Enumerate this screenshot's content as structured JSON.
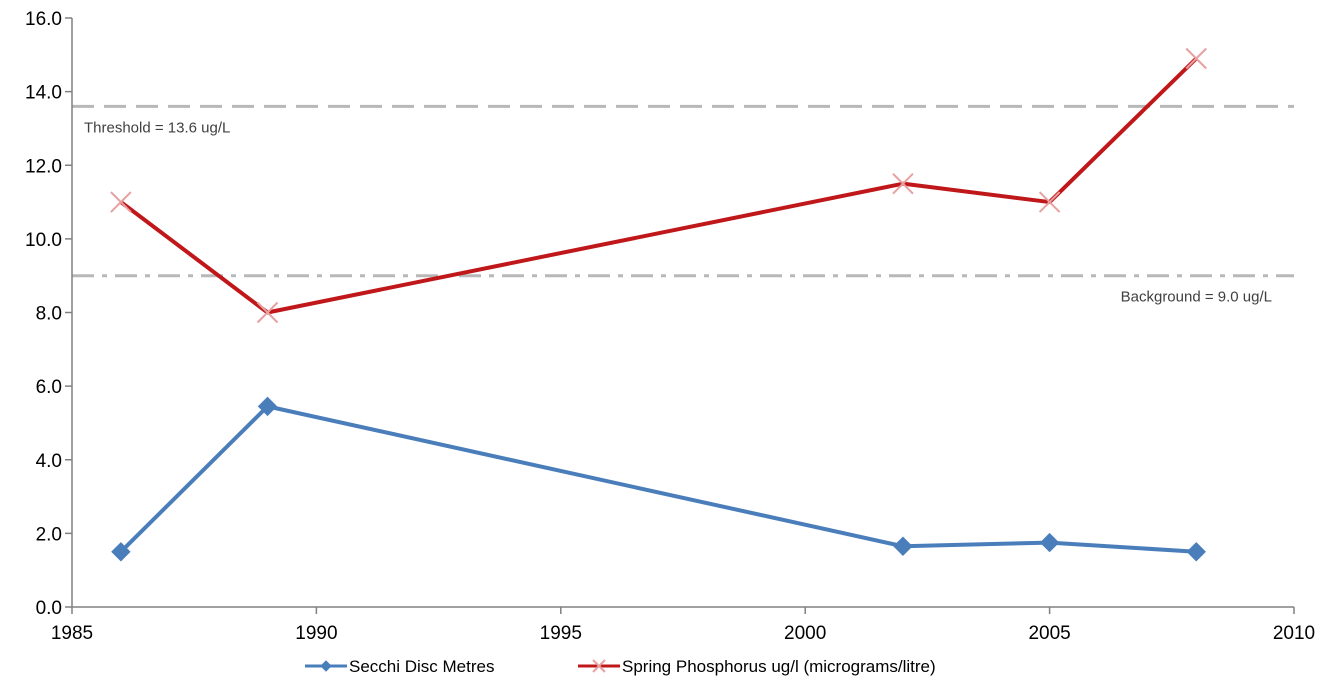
{
  "chart_data": {
    "type": "line",
    "title": "",
    "xlabel": "",
    "ylabel": "",
    "xlim": [
      1985,
      2010
    ],
    "ylim": [
      0,
      16
    ],
    "x_ticks": [
      1985,
      1990,
      1995,
      2000,
      2005,
      2010
    ],
    "y_ticks": [
      0,
      2,
      4,
      6,
      8,
      10,
      12,
      14,
      16
    ],
    "x_tick_labels": [
      "1985",
      "1990",
      "1995",
      "2000",
      "2005",
      "2010"
    ],
    "y_tick_labels": [
      "0.0",
      "2.0",
      "4.0",
      "6.0",
      "8.0",
      "10.0",
      "12.0",
      "14.0",
      "16.0"
    ],
    "grid": false,
    "legend_position": "bottom",
    "series": [
      {
        "name": "Secchi Disc Metres",
        "color": "#4a7ebb",
        "marker": "diamond",
        "x": [
          1986,
          1989,
          2002,
          2005,
          2008
        ],
        "y": [
          1.5,
          5.45,
          1.65,
          1.75,
          1.5
        ]
      },
      {
        "name": "Spring Phosphorus ug/l (micrograms/litre)",
        "color": "#c0181a",
        "marker": "x",
        "x": [
          1986,
          1989,
          2002,
          2005,
          2008
        ],
        "y": [
          11.0,
          8.0,
          11.5,
          11.0,
          14.9
        ]
      }
    ],
    "reference_lines": [
      {
        "value": 13.6,
        "label": "Threshold = 13.6 ug/L",
        "style": "dashed",
        "color": "#b8b8b8",
        "label_position": "left-below"
      },
      {
        "value": 9.0,
        "label": "Background = 9.0 ug/L",
        "style": "dashdot",
        "color": "#b8b8b8",
        "label_position": "right-below"
      }
    ]
  }
}
